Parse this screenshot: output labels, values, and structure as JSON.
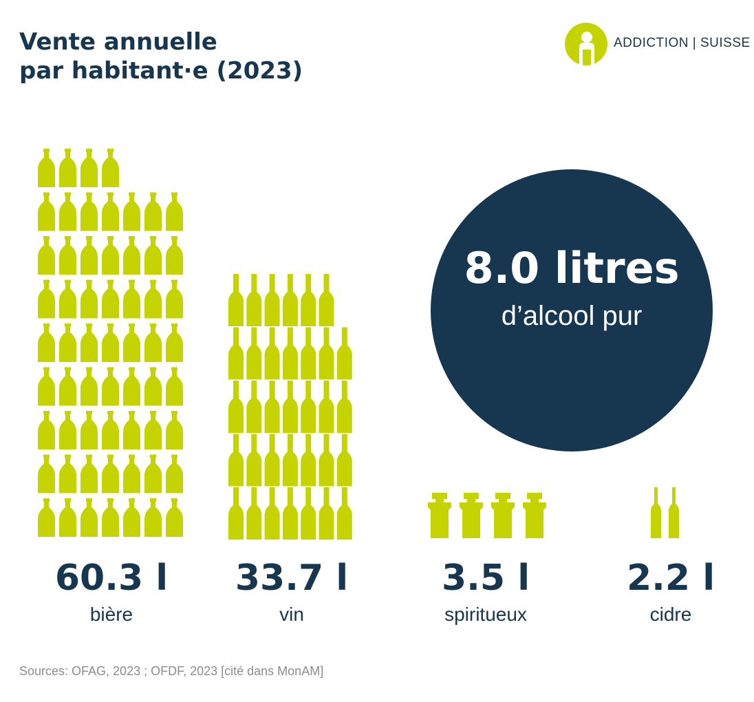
{
  "title": {
    "line1": "Vente annuelle",
    "line2": "par habitant·e (2023)"
  },
  "logo": {
    "text": "ADDICTION | SUISSE"
  },
  "highlight": {
    "value": "8.0 litres",
    "label": "d’alcool pur"
  },
  "colors": {
    "accent": "#c5d300",
    "dark": "#173650",
    "source_text": "#8c8c8c"
  },
  "chart_data": {
    "type": "bar",
    "categories": [
      "bière",
      "vin",
      "spiritueux",
      "cidre"
    ],
    "values": [
      60.3,
      33.7,
      3.5,
      2.2
    ],
    "unit": "l",
    "value_labels": [
      "60.3 l",
      "33.7 l",
      "3.5 l",
      "2.2 l"
    ],
    "icons": [
      "beer-bottle",
      "wine-bottle",
      "spirits-bottle",
      "cider-bottle"
    ],
    "title": "Vente annuelle par habitant·e (2023)"
  },
  "source": "Sources: OFAG, 2023 ; OFDF, 2023 [cité dans MonAM]"
}
